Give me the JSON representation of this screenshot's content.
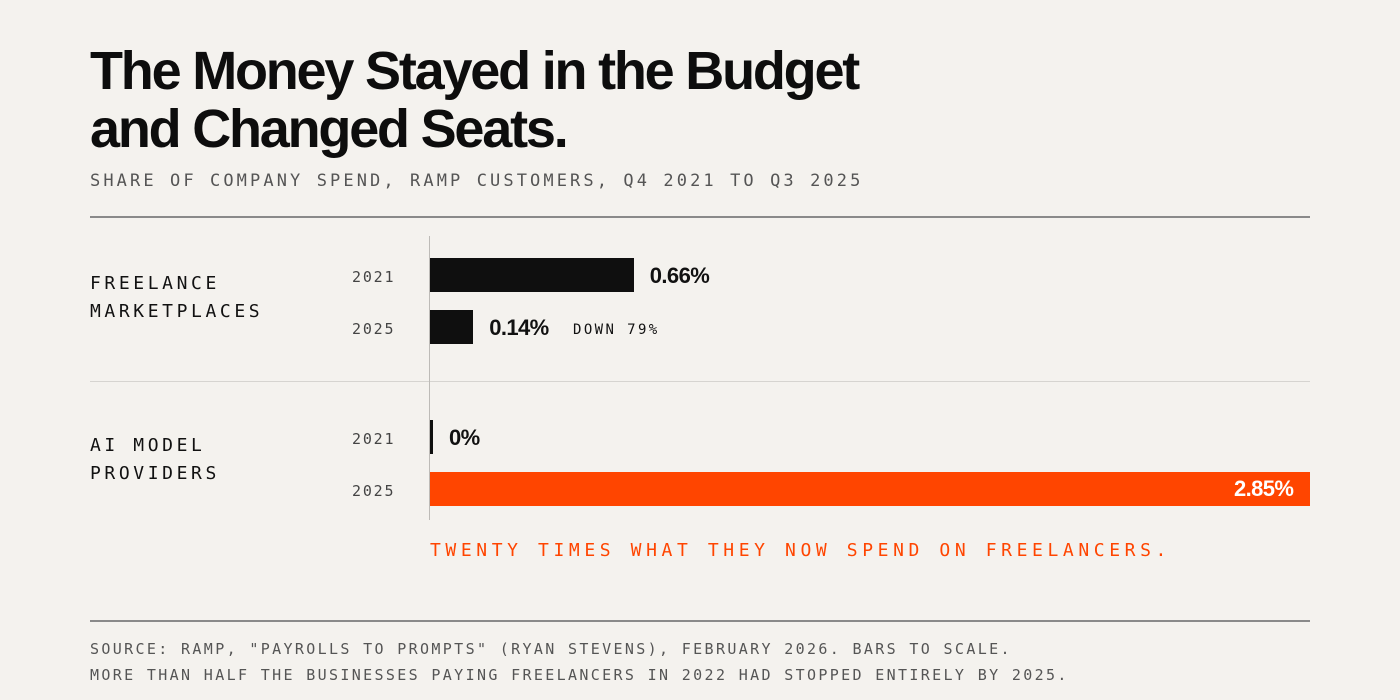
{
  "title": {
    "line1": "The Money Stayed in the Budget",
    "line2": "and Changed Seats."
  },
  "subtitle": "SHARE OF COMPANY SPEND, RAMP CUSTOMERS, Q4 2021 TO Q3 2025",
  "chart_data": {
    "type": "bar",
    "orientation": "horizontal",
    "unit": "%",
    "xlim": [
      0,
      2.85
    ],
    "grid": false,
    "legend": "none",
    "groups": [
      {
        "label_lines": [
          "FREELANCE",
          "MARKETPLACES"
        ],
        "bars": [
          {
            "year": "2021",
            "value": 0.66,
            "label": "0.66%",
            "note": ""
          },
          {
            "year": "2025",
            "value": 0.14,
            "label": "0.14%",
            "note": "DOWN 79%"
          }
        ]
      },
      {
        "label_lines": [
          "AI MODEL",
          "PROVIDERS"
        ],
        "bars": [
          {
            "year": "2021",
            "value": 0.0,
            "label": "0%",
            "note": ""
          },
          {
            "year": "2025",
            "value": 2.85,
            "label": "2.85%",
            "note": ""
          }
        ]
      }
    ],
    "annotation": "TWENTY TIMES WHAT THEY NOW SPEND ON FREELANCERS."
  },
  "colors": {
    "background": "#f4f2ee",
    "bar": "#0f0f0f",
    "accent": "#ff4500",
    "text": "#111111",
    "muted": "#555555"
  },
  "footer": {
    "line1": "SOURCE: RAMP, \"PAYROLLS TO PROMPTS\" (RYAN STEVENS), FEBRUARY 2026. BARS TO SCALE.",
    "line2": "MORE THAN HALF THE BUSINESSES PAYING FREELANCERS IN 2022 HAD STOPPED ENTIRELY BY 2025."
  }
}
